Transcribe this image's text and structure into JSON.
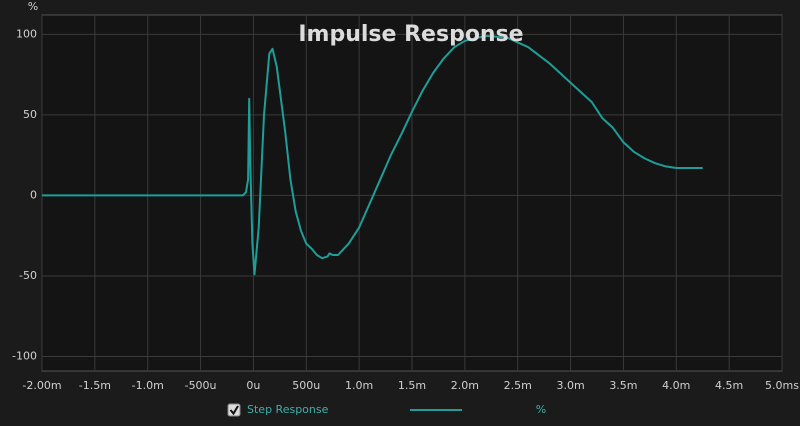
{
  "chart_data": {
    "type": "line",
    "title": "Impulse Response",
    "y_label": "%",
    "x": [
      -2.0,
      -0.5,
      -0.1,
      -0.07,
      -0.05,
      -0.04,
      -0.03,
      -0.01,
      0.01,
      0.05,
      0.1,
      0.15,
      0.18,
      0.22,
      0.3,
      0.35,
      0.4,
      0.45,
      0.5,
      0.55,
      0.6,
      0.65,
      0.7,
      0.72,
      0.75,
      0.8,
      0.9,
      1.0,
      1.1,
      1.2,
      1.3,
      1.4,
      1.5,
      1.6,
      1.7,
      1.8,
      1.9,
      2.0,
      2.2,
      2.4,
      2.6,
      2.8,
      3.0,
      3.2,
      3.3,
      3.4,
      3.5,
      3.6,
      3.7,
      3.8,
      3.9,
      4.0,
      4.25
    ],
    "series": [
      {
        "name": "Step Response",
        "unit": "%",
        "color": "#1f9e98",
        "values": [
          0,
          0,
          0,
          2,
          10,
          60,
          20,
          -30,
          -49,
          -20,
          50,
          88,
          91,
          80,
          40,
          10,
          -10,
          -22,
          -30,
          -33,
          -37,
          -39,
          -38,
          -36,
          -37,
          -37,
          -30,
          -20,
          -5,
          10,
          25,
          38,
          52,
          65,
          76,
          85,
          92,
          96,
          99,
          98,
          92,
          82,
          70,
          58,
          48,
          42,
          33,
          27,
          23,
          20,
          18,
          17,
          17
        ]
      }
    ],
    "xlim": [
      -2,
      5
    ],
    "ylim": [
      -109,
      112
    ],
    "xticks": [
      {
        "value": -2,
        "label": "-2.00m"
      },
      {
        "value": -1.5,
        "label": "-1.5m"
      },
      {
        "value": -1,
        "label": "-1.0m"
      },
      {
        "value": -0.5,
        "label": "-500u"
      },
      {
        "value": 0,
        "label": "0u"
      },
      {
        "value": 0.5,
        "label": "500u"
      },
      {
        "value": 1,
        "label": "1.0m"
      },
      {
        "value": 1.5,
        "label": "1.5m"
      },
      {
        "value": 2,
        "label": "2.0m"
      },
      {
        "value": 2.5,
        "label": "2.5m"
      },
      {
        "value": 3,
        "label": "3.0m"
      },
      {
        "value": 3.5,
        "label": "3.5m"
      },
      {
        "value": 4,
        "label": "4.0m"
      },
      {
        "value": 4.5,
        "label": "4.5m"
      },
      {
        "value": 5,
        "label": "5.0ms"
      }
    ],
    "yticks": [
      100,
      50,
      0,
      -50,
      -100
    ],
    "grid": true
  }
}
